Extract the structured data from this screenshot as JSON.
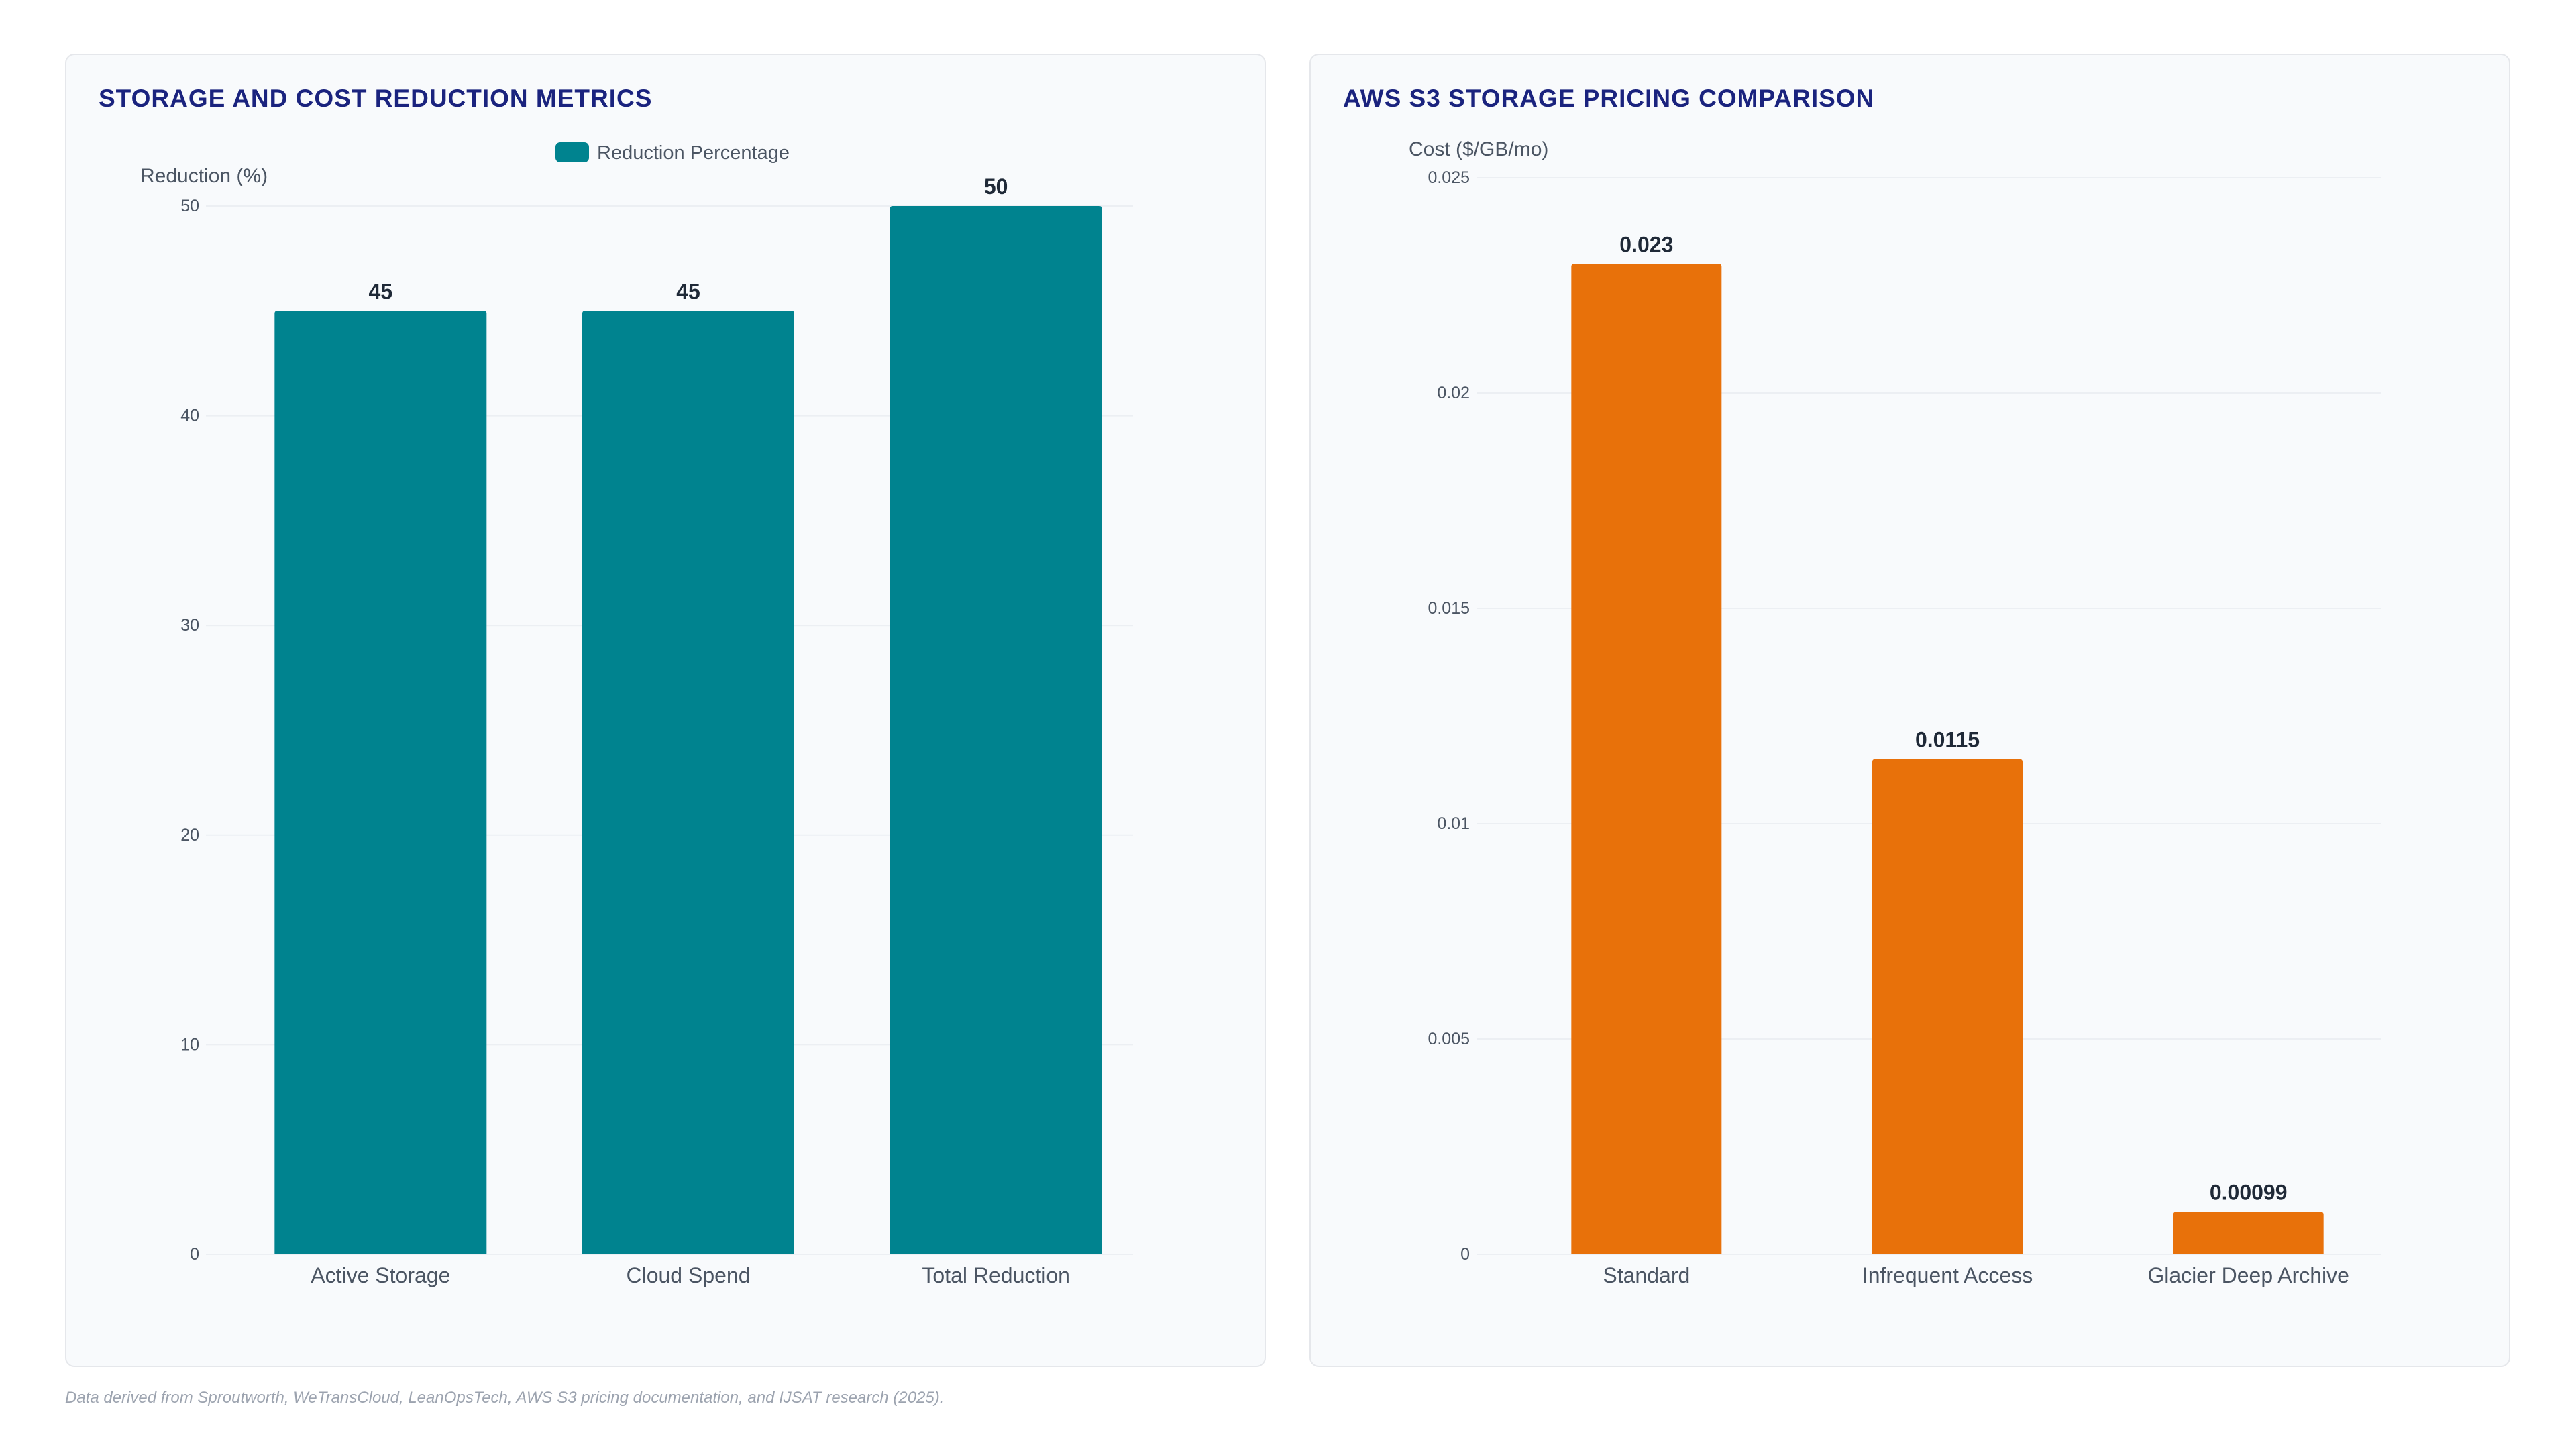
{
  "footnote": "Data derived from Sproutworth, WeTransCloud, LeanOpsTech, AWS S3 pricing documentation, and IJSAT research (2025).",
  "colors": {
    "teal": "#00838f",
    "orange": "#e8710a",
    "title": "#1a237e",
    "grid": "#eceff3"
  },
  "chart_data": [
    {
      "type": "bar",
      "title": "STORAGE AND COST REDUCTION METRICS",
      "ylabel": "Reduction (%)",
      "xlabel": "",
      "categories": [
        "Active Storage",
        "Cloud Spend",
        "Total Reduction"
      ],
      "series": [
        {
          "name": "Reduction Percentage",
          "values": [
            45,
            45,
            50
          ],
          "color": "#00838f"
        }
      ],
      "data_labels": [
        "45",
        "45",
        "50"
      ],
      "ylim": [
        0,
        50
      ],
      "yticks": [
        0,
        10,
        20,
        30,
        40,
        50
      ],
      "ytick_labels": [
        "0",
        "10",
        "20",
        "30",
        "40",
        "50"
      ],
      "grid": true,
      "legend": "top-center"
    },
    {
      "type": "bar",
      "title": "AWS S3 STORAGE PRICING COMPARISON",
      "ylabel": "Cost ($/GB/mo)",
      "xlabel": "",
      "categories": [
        "Standard",
        "Infrequent Access",
        "Glacier Deep Archive"
      ],
      "series": [
        {
          "values": [
            0.023,
            0.0115,
            0.00099
          ],
          "color": "#e8710a"
        }
      ],
      "data_labels": [
        "0.023",
        "0.0115",
        "0.00099"
      ],
      "ylim": [
        0,
        0.025
      ],
      "yticks": [
        0,
        0.005,
        0.01,
        0.015,
        0.02,
        0.025
      ],
      "ytick_labels": [
        "0",
        "0.005",
        "0.01",
        "0.015",
        "0.02",
        "0.025"
      ],
      "grid": true,
      "legend": "none"
    }
  ]
}
